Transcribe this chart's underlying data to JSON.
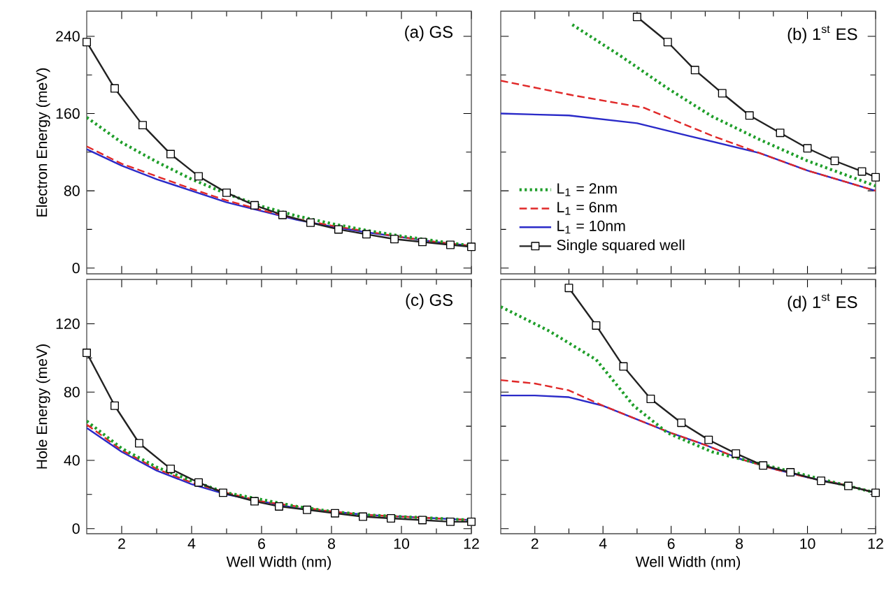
{
  "chart_data": [
    {
      "type": "line",
      "title": "(a) GS",
      "ylabel": "Electron Energy (meV)",
      "xlim": [
        1,
        12
      ],
      "ylim": [
        -6,
        266
      ],
      "xticks": [
        2,
        4,
        6,
        8,
        10,
        12
      ],
      "yticks": [
        0,
        80,
        160,
        240
      ],
      "tick_labels": "y",
      "series": [
        {
          "color": "#1f9e2a",
          "line_style": "dotted",
          "marker": "none",
          "x": [
            1,
            2,
            3,
            4,
            5,
            6,
            7,
            8,
            9,
            10,
            11,
            12
          ],
          "values": [
            156,
            130,
            110,
            92,
            77,
            64,
            54,
            46,
            39,
            33,
            28,
            23
          ]
        },
        {
          "color": "#e02828",
          "line_style": "dashed",
          "marker": "none",
          "x": [
            1,
            2,
            3,
            4,
            5,
            6,
            7,
            8,
            9,
            10,
            11,
            12
          ],
          "values": [
            126,
            108,
            95,
            82,
            70,
            60,
            51,
            44,
            38,
            32,
            27,
            23
          ]
        },
        {
          "color": "#2a2ac8",
          "line_style": "solid",
          "marker": "none",
          "x": [
            1,
            2,
            3,
            4,
            5,
            6,
            7,
            8,
            9,
            10,
            11,
            12
          ],
          "values": [
            123,
            106,
            92,
            80,
            68,
            59,
            50,
            43,
            37,
            32,
            27,
            23
          ]
        },
        {
          "color": "#222222",
          "line_style": "solid",
          "marker": "square",
          "x": [
            1,
            1.8,
            2.6,
            3.4,
            4.2,
            5,
            5.8,
            6.6,
            7.4,
            8.2,
            9,
            9.8,
            10.6,
            11.4,
            12
          ],
          "values": [
            234,
            186,
            148,
            118,
            95,
            78,
            65,
            55,
            47,
            40,
            35,
            30,
            27,
            24,
            22
          ]
        }
      ]
    },
    {
      "type": "line",
      "title": "(b) 1$^{st}$ ES",
      "xlim": [
        1,
        12
      ],
      "ylim": [
        -6,
        266
      ],
      "xticks": [
        2,
        4,
        6,
        8,
        10,
        12
      ],
      "yticks": [
        0,
        80,
        160,
        240
      ],
      "tick_labels": false,
      "legend": "bottom left",
      "series": [
        {
          "name": "L$_{1}$ = 2nm",
          "color": "#1f9e2a",
          "line_style": "dotted",
          "marker": "none",
          "x": [
            3.1,
            4.5,
            5.9,
            7.2,
            8.6,
            10,
            12
          ],
          "values": [
            252,
            220,
            186,
            157,
            133,
            111,
            85
          ]
        },
        {
          "name": "L$_{1}$ = 6nm",
          "color": "#e02828",
          "line_style": "dashed",
          "marker": "none",
          "x": [
            1,
            3.1,
            5.2,
            7.2,
            8.6,
            10,
            12
          ],
          "values": [
            194,
            179,
            166,
            137,
            119,
            101,
            80
          ]
        },
        {
          "name": "L$_{1}$ = 10nm",
          "color": "#2a2ac8",
          "line_style": "solid",
          "marker": "none",
          "x": [
            1,
            3,
            5,
            6.5,
            8.6,
            10,
            12
          ],
          "values": [
            160,
            158,
            150,
            137,
            119,
            101,
            80
          ]
        },
        {
          "name": "Single squared well",
          "color": "#222222",
          "line_style": "solid",
          "marker": "square",
          "x": [
            5,
            5.9,
            6.7,
            7.5,
            8.3,
            9.2,
            10,
            10.8,
            11.6,
            12
          ],
          "values": [
            260,
            234,
            205,
            181,
            158,
            140,
            124,
            111,
            100,
            94
          ]
        }
      ]
    },
    {
      "type": "line",
      "title": "(c) GS",
      "xlabel": "Well Width (nm)",
      "ylabel": "Hole Energy (meV)",
      "xlim": [
        1,
        12
      ],
      "ylim": [
        -3,
        146
      ],
      "xticks": [
        2,
        4,
        6,
        8,
        10,
        12
      ],
      "yticks": [
        0,
        40,
        80,
        120
      ],
      "series": [
        {
          "color": "#1f9e2a",
          "line_style": "dotted",
          "marker": "none",
          "x": [
            1,
            2,
            3,
            4,
            5,
            6,
            7,
            8,
            9,
            10,
            11,
            12
          ],
          "values": [
            63,
            47,
            36,
            28,
            21,
            17,
            13,
            10,
            8,
            7,
            6,
            5
          ]
        },
        {
          "color": "#e02828",
          "line_style": "dashed",
          "marker": "none",
          "x": [
            1,
            2,
            3,
            4,
            5,
            6,
            7,
            8,
            9,
            10,
            11,
            12
          ],
          "values": [
            61,
            46,
            35,
            27,
            21,
            16,
            13,
            10,
            8,
            7,
            6,
            5
          ]
        },
        {
          "color": "#2a2ac8",
          "line_style": "solid",
          "marker": "none",
          "x": [
            1,
            2,
            3,
            4,
            5,
            6,
            7,
            8,
            9,
            10,
            11,
            12
          ],
          "values": [
            59,
            45,
            34,
            26,
            20,
            16,
            12,
            10,
            8,
            7,
            6,
            5
          ]
        },
        {
          "color": "#222222",
          "line_style": "solid",
          "marker": "square",
          "x": [
            1,
            1.8,
            2.5,
            3.4,
            4.2,
            4.9,
            5.8,
            6.5,
            7.3,
            8.1,
            8.9,
            9.7,
            10.6,
            11.4,
            12
          ],
          "values": [
            103,
            72,
            50,
            35,
            27,
            21,
            16,
            13,
            11,
            9,
            7,
            6,
            5,
            4,
            4
          ]
        }
      ]
    },
    {
      "type": "line",
      "title": "(d) 1$^{st}$ ES",
      "xlabel": "Well Width (nm)",
      "xlim": [
        1,
        12
      ],
      "ylim": [
        -3,
        146
      ],
      "xticks": [
        2,
        4,
        6,
        8,
        10,
        12
      ],
      "yticks": [
        0,
        40,
        80,
        120
      ],
      "tick_labels": "x",
      "series": [
        {
          "color": "#1f9e2a",
          "line_style": "dotted",
          "marker": "none",
          "x": [
            1,
            2.4,
            3.8,
            4.9,
            5.9,
            7.2,
            8.6,
            10,
            12
          ],
          "values": [
            130,
            116,
            99,
            72,
            56,
            45,
            38,
            31,
            21
          ]
        },
        {
          "color": "#e02828",
          "line_style": "dashed",
          "marker": "none",
          "x": [
            1,
            2,
            3,
            4,
            5,
            6,
            7,
            8,
            9,
            10,
            11,
            12
          ],
          "values": [
            87,
            85,
            81,
            72,
            64,
            56,
            49,
            41,
            35,
            30,
            26,
            21
          ]
        },
        {
          "color": "#2a2ac8",
          "line_style": "solid",
          "marker": "none",
          "x": [
            1,
            2,
            3,
            4,
            5,
            6,
            7,
            8,
            9,
            10,
            11,
            12
          ],
          "values": [
            78,
            78,
            77,
            72,
            64,
            56,
            49,
            41,
            35,
            30,
            26,
            21
          ]
        },
        {
          "color": "#222222",
          "line_style": "solid",
          "marker": "square",
          "x": [
            3,
            3.8,
            4.6,
            5.4,
            6.3,
            7.1,
            7.9,
            8.7,
            9.5,
            10.4,
            11.2,
            12
          ],
          "values": [
            141,
            119,
            95,
            76,
            62,
            52,
            44,
            37,
            33,
            28,
            25,
            21
          ]
        }
      ]
    }
  ]
}
